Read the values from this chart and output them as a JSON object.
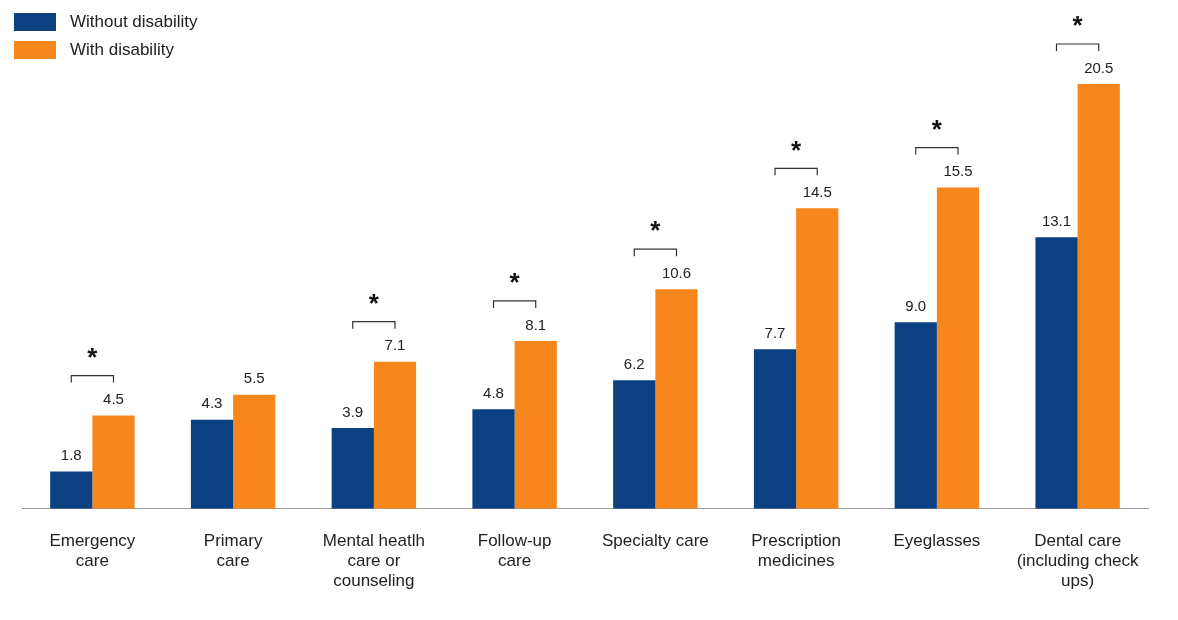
{
  "chart_data": {
    "type": "bar",
    "categories": [
      "Emergency\ncare",
      "Primary\ncare",
      "Mental heatlh\ncare or\ncounseling",
      "Follow-up\ncare",
      "Specialty care",
      "Prescription\nmedicines",
      "Eyeglasses",
      "Dental care\n(including check\nups)"
    ],
    "series": [
      {
        "name": "Without disability",
        "color": "#0b4083",
        "values": [
          1.8,
          4.3,
          3.9,
          4.8,
          6.2,
          7.7,
          9.0,
          13.1
        ],
        "value_labels": [
          "1.8",
          "4.3",
          "3.9",
          "4.8",
          "6.2",
          "7.7",
          "9.0",
          "13.1"
        ]
      },
      {
        "name": "With disability",
        "color": "#f7861c",
        "values": [
          4.5,
          5.5,
          7.1,
          8.1,
          10.6,
          14.5,
          15.5,
          20.5
        ],
        "value_labels": [
          "4.5",
          "5.5",
          "7.1",
          "8.1",
          "10.6",
          "14.5",
          "15.5",
          "20.5"
        ]
      }
    ],
    "legend": "top left",
    "annotations": [
      {
        "text": "*",
        "x": "Emergency\ncare",
        "y": 4.5
      },
      {
        "text": "*",
        "x": "Mental heatlh\ncare or\ncounseling",
        "y": 7.1
      },
      {
        "text": "*",
        "x": "Follow-up\ncare",
        "y": 8.1
      },
      {
        "text": "*",
        "x": "Specialty care",
        "y": 10.6
      },
      {
        "text": "*",
        "x": "Prescription\nmedicines",
        "y": 14.5
      },
      {
        "text": "*",
        "x": "Eyeglasses",
        "y": 15.5
      },
      {
        "text": "*",
        "x": "Dental care\n(including check\nups)",
        "y": 20.5
      }
    ]
  }
}
